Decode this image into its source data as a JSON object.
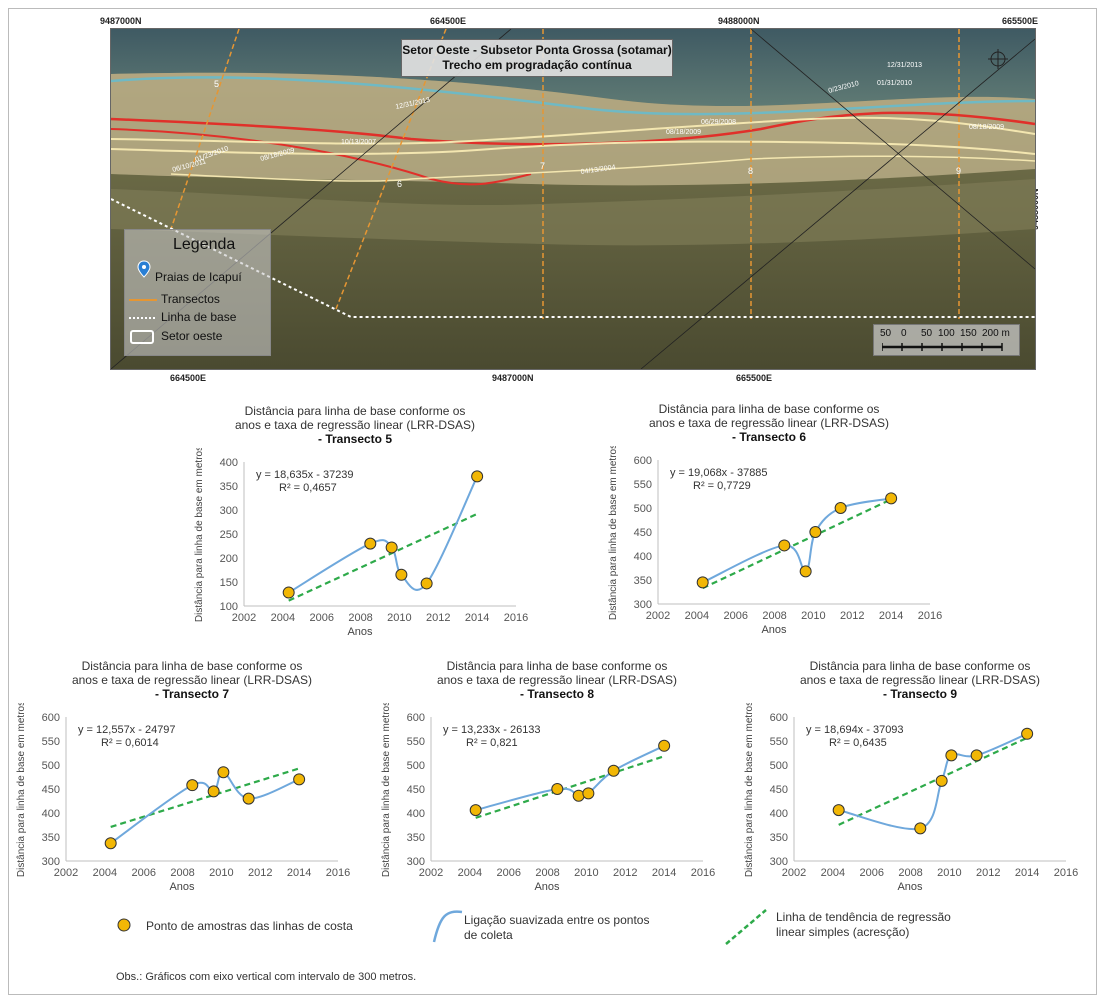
{
  "map": {
    "title_line1": "Setor Oeste - Subsetor Ponta Grossa (sotamar)",
    "title_line2": "Trecho em progradação contínua",
    "coords_top": [
      "9487000N",
      "664500E",
      "9488000N",
      "665500E"
    ],
    "coords_bottom": [
      "664500E",
      "9487000N",
      "665500E"
    ],
    "coord_right": "9488000N",
    "transect_labels": [
      "5",
      "6",
      "7",
      "8",
      "9"
    ],
    "line_dates": [
      "12/31/2013",
      "01/31/2010",
      "0/23/2010",
      "12/31/2013",
      "06/29/2008",
      "08/18/2009",
      "10/13/2007",
      "04/13/2004",
      "01/23/2010",
      "08/18/2009",
      "06/10/2011",
      "08/18/2009"
    ],
    "legend": {
      "title": "Legenda",
      "items": [
        "Praias de Icapuí",
        "Transectos",
        "Linha de base",
        "Setor oeste"
      ]
    },
    "scale_labels": [
      "50",
      "0",
      "50",
      "100",
      "150",
      "200 m"
    ],
    "colors": {
      "transect": "#e69633",
      "shoreline_red": "#e0302a",
      "shoreline_cream": "#f3e6b0",
      "shoreline_teal": "#6fb9c4",
      "baseline": "#ffffff"
    }
  },
  "charts_common": {
    "title_line1": "Distância para linha de base conforme os",
    "title_line2": "anos e taxa de regressão linear (LRR-DSAS)",
    "ylabel": "Distância para linha de base em metros",
    "xlabel": "Anos",
    "x_ticks": [
      "2002",
      "2004",
      "2006",
      "2008",
      "2010",
      "2012",
      "2014",
      "2016"
    ],
    "point_color": "#f2b705",
    "smooth_color": "#6fa8dc",
    "trend_color": "#2eaa4a"
  },
  "chart_data": [
    {
      "type": "scatter",
      "title": "- Transecto 5",
      "xlim": [
        2002,
        2016
      ],
      "ylim": [
        100,
        400
      ],
      "y_ticks": [
        "100",
        "150",
        "200",
        "250",
        "300",
        "350",
        "400"
      ],
      "x": [
        2004.3,
        2008.5,
        2009.6,
        2010.1,
        2011.4,
        2014.0
      ],
      "y": [
        128,
        230,
        222,
        165,
        147,
        370
      ],
      "trend": {
        "slope": 18.635,
        "intercept": -37239,
        "equation": "y = 18,635x - 37239",
        "r2": "R² = 0,4657"
      }
    },
    {
      "type": "scatter",
      "title": "- Transecto 6",
      "xlim": [
        2002,
        2016
      ],
      "ylim": [
        300,
        600
      ],
      "y_ticks": [
        "300",
        "350",
        "400",
        "450",
        "500",
        "550",
        "600"
      ],
      "x": [
        2004.3,
        2008.5,
        2009.6,
        2010.1,
        2011.4,
        2014.0
      ],
      "y": [
        345,
        422,
        368,
        450,
        500,
        520
      ],
      "trend": {
        "slope": 19.068,
        "intercept": -37885,
        "equation": "y = 19,068x - 37885",
        "r2": "R² = 0,7729"
      }
    },
    {
      "type": "scatter",
      "title": "- Transecto 7",
      "xlim": [
        2002,
        2016
      ],
      "ylim": [
        300,
        600
      ],
      "y_ticks": [
        "300",
        "350",
        "400",
        "450",
        "500",
        "550",
        "600"
      ],
      "x": [
        2004.3,
        2008.5,
        2009.6,
        2010.1,
        2011.4,
        2014.0
      ],
      "y": [
        337,
        458,
        445,
        485,
        430,
        470
      ],
      "trend": {
        "slope": 12.557,
        "intercept": -24797,
        "equation": "y = 12,557x - 24797",
        "r2": "R² = 0,6014"
      }
    },
    {
      "type": "scatter",
      "title": "- Transecto 8",
      "xlim": [
        2002,
        2016
      ],
      "ylim": [
        300,
        600
      ],
      "y_ticks": [
        "300",
        "350",
        "400",
        "450",
        "500",
        "550",
        "600"
      ],
      "x": [
        2004.3,
        2008.5,
        2009.6,
        2010.1,
        2011.4,
        2014.0
      ],
      "y": [
        406,
        450,
        436,
        441,
        488,
        540
      ],
      "trend": {
        "slope": 13.233,
        "intercept": -26133,
        "equation": "y = 13,233x - 26133",
        "r2": "R² = 0,821"
      }
    },
    {
      "type": "scatter",
      "title": "- Transecto 9",
      "xlim": [
        2002,
        2016
      ],
      "ylim": [
        300,
        600
      ],
      "y_ticks": [
        "300",
        "350",
        "400",
        "450",
        "500",
        "550",
        "600"
      ],
      "x": [
        2004.3,
        2008.5,
        2009.6,
        2010.1,
        2011.4,
        2014.0
      ],
      "y": [
        406,
        368,
        467,
        520,
        520,
        565
      ],
      "trend": {
        "slope": 18.694,
        "intercept": -37093,
        "equation": "y = 18,694x - 37093",
        "r2": "R² = 0,6435"
      }
    }
  ],
  "bottom_legend": {
    "points": "Ponto de amostras das linhas de costa",
    "smooth_line1": "Ligação suavizada entre os pontos",
    "smooth_line2": "de coleta",
    "trend_line1": "Linha de tendência de regressão",
    "trend_line2": "linear simples (acresção)"
  },
  "note": "Obs.: Gráficos com eixo vertical com intervalo de 300 metros."
}
